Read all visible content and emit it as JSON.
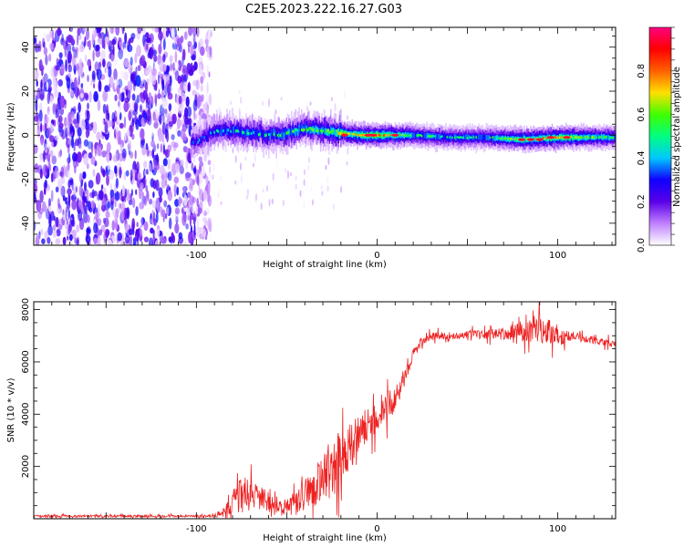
{
  "title": "C2E5.2023.222.16.27.G03",
  "chart_data": [
    {
      "type": "heatmap",
      "title": "C2E5.2023.222.16.27.G03",
      "xlabel": "Height of straight line (km)",
      "ylabel": "Frequency (Hz)",
      "xlim": [
        -190,
        132
      ],
      "ylim": [
        -50,
        49
      ],
      "x_ticks": [
        -100,
        0,
        100
      ],
      "y_ticks": [
        -40,
        -20,
        0,
        20,
        40
      ],
      "colorbar": {
        "label": "Normalized spectral amplitude",
        "range": [
          0,
          1
        ],
        "ticks": [
          0.0,
          0.2,
          0.4,
          0.6,
          0.8
        ],
        "colormap": [
          "#ffffff",
          "#c080ff",
          "#5a00e8",
          "#1000ff",
          "#00c8ff",
          "#00ff80",
          "#40ff00",
          "#ffe000",
          "#ff6000",
          "#ff0000",
          "#ff0080"
        ]
      },
      "noise_region": {
        "x_from": -190,
        "x_to": -92,
        "freq_from": -50,
        "freq_to": 49
      },
      "signal_track": [
        {
          "x": -100,
          "freq": -3,
          "amp": 0.35
        },
        {
          "x": -90,
          "freq": 2,
          "amp": 0.45
        },
        {
          "x": -80,
          "freq": 2,
          "amp": 0.5
        },
        {
          "x": -70,
          "freq": 1,
          "amp": 0.5
        },
        {
          "x": -60,
          "freq": 0,
          "amp": 0.5
        },
        {
          "x": -50,
          "freq": 1,
          "amp": 0.55
        },
        {
          "x": -40,
          "freq": 3,
          "amp": 0.55
        },
        {
          "x": -30,
          "freq": 2,
          "amp": 0.6
        },
        {
          "x": -20,
          "freq": 1,
          "amp": 0.7
        },
        {
          "x": -10,
          "freq": 0,
          "amp": 0.75
        },
        {
          "x": 0,
          "freq": 0,
          "amp": 0.8
        },
        {
          "x": 20,
          "freq": 0,
          "amp": 0.55
        },
        {
          "x": 40,
          "freq": -1,
          "amp": 0.5
        },
        {
          "x": 60,
          "freq": -1,
          "amp": 0.5
        },
        {
          "x": 80,
          "freq": -2,
          "amp": 0.7
        },
        {
          "x": 100,
          "freq": -1,
          "amp": 0.75
        },
        {
          "x": 120,
          "freq": -1,
          "amp": 0.6
        },
        {
          "x": 132,
          "freq": -1,
          "amp": 0.55
        }
      ]
    },
    {
      "type": "line",
      "xlabel": "Height of straight line (km)",
      "ylabel": "SNR (10 * v/v)",
      "xlim": [
        -190,
        132
      ],
      "ylim": [
        0,
        8300
      ],
      "x_ticks": [
        -100,
        0,
        100
      ],
      "y_ticks": [
        2000,
        4000,
        6000,
        8000
      ],
      "color": "#ee2222",
      "series": [
        {
          "x": [
            -190,
            -160,
            -130,
            -100,
            -90,
            -85,
            -80,
            -75,
            -70,
            -65,
            -60,
            -55,
            -50,
            -45,
            -40,
            -35,
            -30,
            -25,
            -20,
            -15,
            -10,
            -5,
            0,
            5,
            10,
            15,
            20,
            25,
            30,
            40,
            50,
            60,
            70,
            80,
            90,
            100,
            105,
            110,
            120,
            132
          ],
          "mean": [
            100,
            100,
            100,
            100,
            120,
            250,
            600,
            900,
            1000,
            800,
            600,
            500,
            400,
            600,
            900,
            1200,
            1500,
            1900,
            2300,
            2700,
            3300,
            3600,
            3800,
            4300,
            4500,
            5400,
            6300,
            6800,
            7000,
            7000,
            7050,
            7050,
            7100,
            7200,
            7300,
            7000,
            6900,
            7000,
            6800,
            6700
          ],
          "spread": [
            60,
            60,
            60,
            60,
            80,
            300,
            700,
            1000,
            800,
            700,
            600,
            500,
            500,
            700,
            800,
            1200,
            1300,
            1500,
            1600,
            1300,
            1100,
            900,
            800,
            800,
            700,
            500,
            300,
            250,
            200,
            200,
            200,
            250,
            300,
            600,
            800,
            600,
            250,
            200,
            200,
            200
          ]
        }
      ]
    }
  ]
}
